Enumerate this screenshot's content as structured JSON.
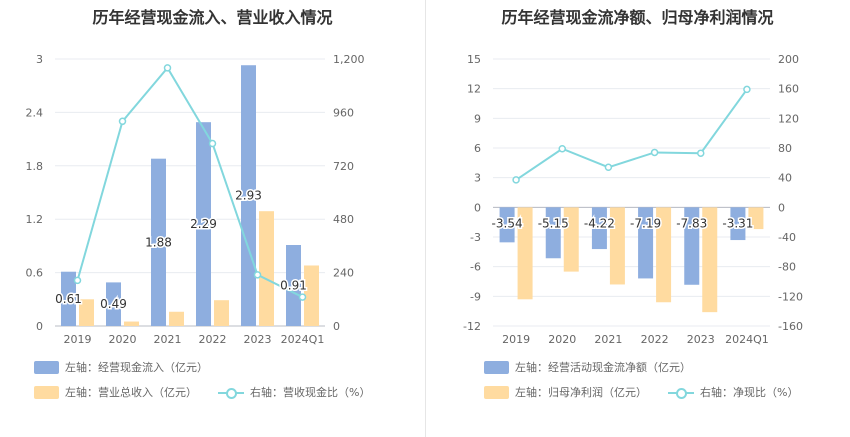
{
  "charts": {
    "left": {
      "title": "历年经营现金流入、营业收入情况"
    },
    "right": {
      "title": "历年经营现金流净额、归母净利润情况"
    }
  },
  "colors": {
    "blue": "#8eaedf",
    "orange": "#ffdba0",
    "line": "#82d7dd"
  },
  "chart_data": [
    {
      "type": "bar",
      "title": "历年经营现金流入、营业收入情况",
      "categories": [
        "2019",
        "2020",
        "2021",
        "2022",
        "2023",
        "2024Q1"
      ],
      "left_axis": {
        "ylim": [
          0,
          3
        ],
        "ticks": [
          "0",
          "0.6",
          "1.2",
          "1.8",
          "2.4",
          "3"
        ]
      },
      "right_axis": {
        "ylim": [
          0,
          1200
        ],
        "ticks": [
          "0",
          "240",
          "480",
          "720",
          "960",
          "1,200"
        ]
      },
      "series": [
        {
          "name": "左轴：经营现金流入（亿元）",
          "axis": "left",
          "type": "bar",
          "values": [
            0.61,
            0.49,
            1.88,
            2.29,
            2.93,
            0.91
          ],
          "labels": [
            "0.61",
            "0.49",
            "1.88",
            "2.29",
            "2.93",
            "0.91"
          ]
        },
        {
          "name": "左轴：营业总收入（亿元）",
          "axis": "left",
          "type": "bar",
          "values": [
            0.3,
            0.05,
            0.16,
            0.29,
            1.29,
            0.68
          ]
        },
        {
          "name": "右轴：营收现金比（%）",
          "axis": "right",
          "type": "line",
          "values": [
            205,
            920,
            1160,
            820,
            230,
            130
          ]
        }
      ],
      "grid": true,
      "legend_position": "bottom-left"
    },
    {
      "type": "bar",
      "title": "历年经营现金流净额、归母净利润情况",
      "categories": [
        "2019",
        "2020",
        "2021",
        "2022",
        "2023",
        "2024Q1"
      ],
      "left_axis": {
        "ylim": [
          -12,
          15
        ],
        "ticks": [
          "-12",
          "-9",
          "-6",
          "-3",
          "0",
          "3",
          "6",
          "9",
          "12",
          "15"
        ]
      },
      "right_axis": {
        "ylim": [
          -160,
          200
        ],
        "ticks": [
          "-160",
          "-120",
          "-80",
          "-40",
          "0",
          "40",
          "80",
          "120",
          "160",
          "200"
        ]
      },
      "series": [
        {
          "name": "左轴：经营活动现金流净额（亿元）",
          "axis": "left",
          "type": "bar",
          "values": [
            -3.54,
            -5.15,
            -4.22,
            -7.19,
            -7.83,
            -3.31
          ],
          "labels": [
            "-3.54",
            "-5.15",
            "-4.22",
            "-7.19",
            "-7.83",
            "-3.31"
          ]
        },
        {
          "name": "左轴：归母净利润（亿元）",
          "axis": "left",
          "type": "bar",
          "values": [
            -9.3,
            -6.5,
            -7.8,
            -9.6,
            -10.6,
            -2.2
          ]
        },
        {
          "name": "右轴：净现比（%）",
          "axis": "right",
          "type": "line",
          "values": [
            37,
            79,
            54,
            74,
            73,
            159
          ]
        }
      ],
      "grid": true,
      "legend_position": "bottom-left"
    }
  ]
}
